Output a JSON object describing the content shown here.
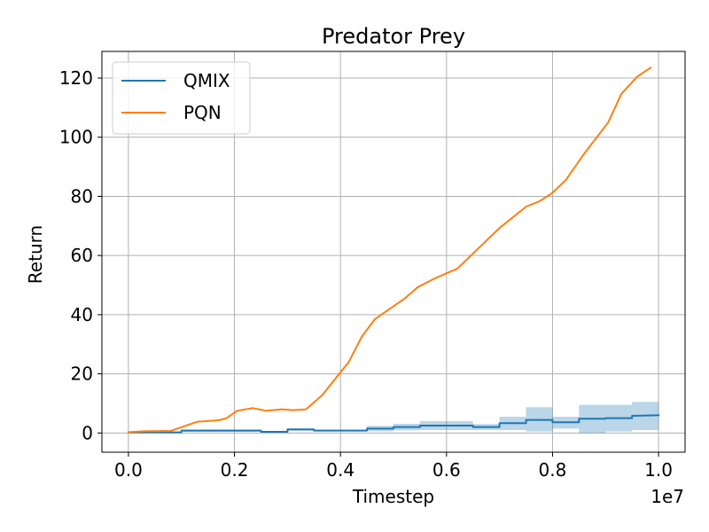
{
  "chart_data": {
    "type": "line",
    "title": "Predator Prey",
    "xlabel": "Timestep",
    "ylabel": "Return",
    "x_offset_label": "1e7",
    "xlim": [
      -0.05,
      1.05
    ],
    "ylim": [
      -6.5,
      129
    ],
    "x_ticks": [
      0.0,
      0.2,
      0.4,
      0.6,
      0.8,
      1.0
    ],
    "x_tick_labels": [
      "0.0",
      "0.2",
      "0.4",
      "0.6",
      "0.8",
      "1.0"
    ],
    "y_ticks": [
      0,
      20,
      40,
      60,
      80,
      100,
      120
    ],
    "y_tick_labels": [
      "0",
      "20",
      "40",
      "60",
      "80",
      "100",
      "120"
    ],
    "grid": true,
    "legend_position": "top-left",
    "series": [
      {
        "name": "QMIX",
        "color": "#1f77b4",
        "band_color": "#1f77b4",
        "x": [
          0.0,
          0.1,
          0.1,
          0.25,
          0.25,
          0.3,
          0.3,
          0.35,
          0.35,
          0.45,
          0.45,
          0.5,
          0.5,
          0.55,
          0.55,
          0.65,
          0.65,
          0.7,
          0.7,
          0.75,
          0.75,
          0.8,
          0.8,
          0.85,
          0.85,
          0.9,
          0.9,
          0.95,
          0.95,
          1.0
        ],
        "y": [
          0.2,
          0.2,
          0.8,
          0.8,
          0.4,
          0.4,
          1.2,
          1.2,
          0.8,
          0.8,
          1.5,
          1.5,
          2.0,
          2.0,
          2.5,
          2.5,
          2.0,
          2.0,
          3.3,
          3.3,
          4.4,
          4.4,
          3.6,
          3.6,
          4.8,
          4.8,
          5.0,
          5.0,
          5.8,
          6.0
        ],
        "y_lower": [
          0.0,
          0.0,
          0.4,
          0.4,
          0.1,
          0.1,
          0.8,
          0.8,
          0.5,
          0.5,
          0.6,
          0.6,
          0.9,
          0.9,
          1.0,
          1.0,
          1.0,
          1.0,
          1.0,
          1.0,
          0.5,
          0.5,
          1.5,
          1.5,
          0.0,
          0.0,
          0.5,
          0.5,
          1.0,
          1.0
        ],
        "y_upper": [
          0.4,
          0.4,
          1.2,
          1.2,
          0.7,
          0.7,
          1.6,
          1.6,
          1.1,
          1.1,
          2.4,
          2.4,
          3.1,
          3.1,
          4.0,
          4.0,
          3.0,
          3.0,
          5.5,
          5.5,
          8.7,
          8.7,
          5.5,
          5.5,
          9.5,
          9.5,
          9.5,
          9.5,
          10.5,
          10.5
        ]
      },
      {
        "name": "PQN",
        "color": "#ff7f0e",
        "x": [
          0.0,
          0.03,
          0.08,
          0.13,
          0.17,
          0.185,
          0.205,
          0.235,
          0.26,
          0.29,
          0.31,
          0.335,
          0.365,
          0.4,
          0.415,
          0.44,
          0.465,
          0.49,
          0.52,
          0.545,
          0.575,
          0.6,
          0.62,
          0.66,
          0.7,
          0.75,
          0.775,
          0.8,
          0.825,
          0.86,
          0.905,
          0.93,
          0.96,
          0.985
        ],
        "y": [
          0.3,
          0.6,
          0.7,
          3.8,
          4.3,
          5.0,
          7.5,
          8.4,
          7.5,
          8.0,
          7.7,
          8.0,
          12.7,
          20.5,
          23.8,
          32.5,
          38.5,
          41.6,
          45.3,
          49.2,
          52.0,
          54.0,
          55.5,
          62.4,
          69.3,
          76.5,
          78.3,
          81.2,
          85.5,
          94.5,
          105.0,
          114.7,
          120.5,
          123.5
        ]
      }
    ]
  }
}
